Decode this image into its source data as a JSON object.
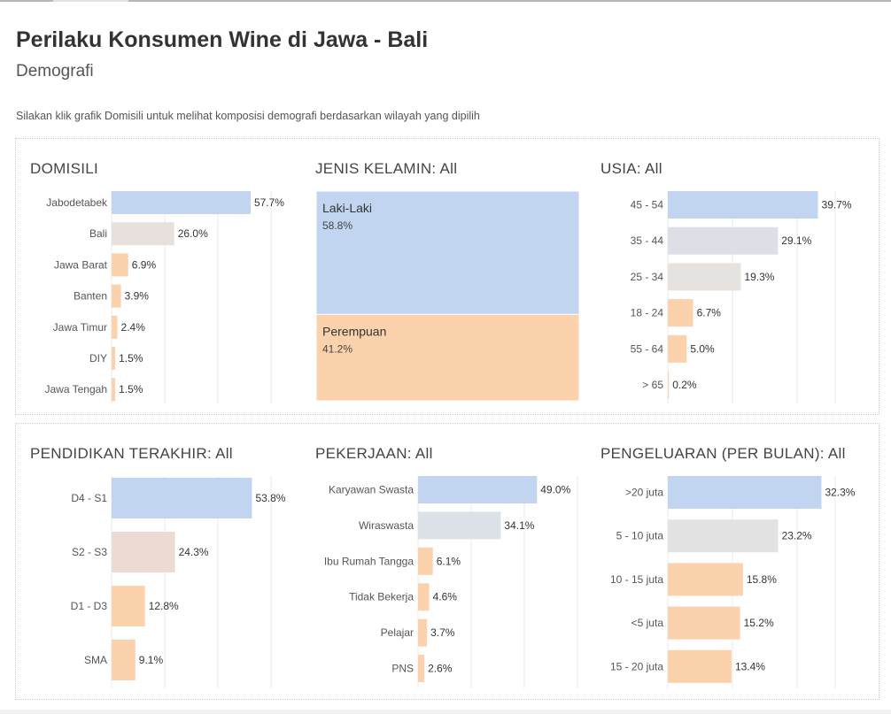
{
  "header": {
    "title": "Perilaku Konsumen Wine di Jawa - Bali",
    "subtitle": "Demografi",
    "instruction": "Silakan klik grafik Domisili untuk melihat komposisi demografi berdasarkan wilayah yang dipilih"
  },
  "colors": {
    "blue": "#c2d5f0",
    "gray": "#dcdfe6",
    "warm_gray": "#e5e0dd",
    "beige": "#ecdbd2",
    "peach": "#fcd2ad",
    "grid": "#ebebeb"
  },
  "chart_data": [
    {
      "id": "domisili",
      "type": "bar",
      "title": "DOMISILI",
      "categories": [
        "Jabodetabek",
        "Bali",
        "Jawa Barat",
        "Banten",
        "Jawa Timur",
        "DIY",
        "Jawa Tengah"
      ],
      "values": [
        57.7,
        26.0,
        6.9,
        3.9,
        2.4,
        1.5,
        1.5
      ],
      "labels": [
        "57.7%",
        "26.0%",
        "6.9%",
        "3.9%",
        "2.4%",
        "1.5%",
        "1.5%"
      ],
      "colors": [
        "#c2d5f0",
        "#e7e0dc",
        "#fcd2ad",
        "#fcd2ad",
        "#fcd2ad",
        "#fcd2ad",
        "#fcd2ad"
      ],
      "xlim": [
        0,
        60
      ]
    },
    {
      "id": "jenis_kelamin",
      "type": "treemap",
      "title": "JENIS KELAMIN: All",
      "categories": [
        "Laki-Laki",
        "Perempuan"
      ],
      "values": [
        58.8,
        41.2
      ],
      "labels": [
        "58.8%",
        "41.2%"
      ],
      "colors": [
        "#c2d5f0",
        "#fcd2ad"
      ]
    },
    {
      "id": "usia",
      "type": "bar",
      "title": "USIA: All",
      "categories": [
        "45 - 54",
        "35 - 44",
        "25 - 34",
        "18 - 24",
        "55 - 64",
        "> 65"
      ],
      "values": [
        39.7,
        29.1,
        19.3,
        6.7,
        5.0,
        0.2
      ],
      "labels": [
        "39.7%",
        "29.1%",
        "19.3%",
        "6.7%",
        "5.0%",
        "0.2%"
      ],
      "colors": [
        "#c2d5f0",
        "#dcdfe6",
        "#e5e2df",
        "#fcd2ad",
        "#fcd2ad",
        "#fcd2ad"
      ],
      "xlim": [
        0,
        40
      ]
    },
    {
      "id": "pendidikan",
      "type": "bar",
      "title": "PENDIDIKAN TERAKHIR: All",
      "categories": [
        "D4 - S1",
        "S2 - S3",
        "D1 - D3",
        "SMA"
      ],
      "values": [
        53.8,
        24.3,
        12.8,
        9.1
      ],
      "labels": [
        "53.8%",
        "24.3%",
        "12.8%",
        "9.1%"
      ],
      "colors": [
        "#c2d5f0",
        "#ecdbd2",
        "#fcd2ad",
        "#fcd2ad"
      ],
      "xlim": [
        0,
        55
      ]
    },
    {
      "id": "pekerjaan",
      "type": "bar",
      "title": "PEKERJAAN: All",
      "categories": [
        "Karyawan Swasta",
        "Wiraswasta",
        "Ibu Rumah Tangga",
        "Tidak Bekerja",
        "Pelajar",
        "PNS"
      ],
      "values": [
        49.0,
        34.1,
        6.1,
        4.6,
        3.7,
        2.6
      ],
      "labels": [
        "49.0%",
        "34.1%",
        "6.1%",
        "4.6%",
        "3.7%",
        "2.6%"
      ],
      "colors": [
        "#c2d5f0",
        "#dde1e8",
        "#fcd2ad",
        "#fcd2ad",
        "#fcd2ad",
        "#fcd2ad"
      ],
      "xlim": [
        0,
        50
      ]
    },
    {
      "id": "pengeluaran",
      "type": "bar",
      "title": "PENGELUARAN (PER BULAN): All",
      "categories": [
        ">20 juta",
        "5 - 10 juta",
        "10 - 15 juta",
        "<5 juta",
        "15 - 20 juta"
      ],
      "values": [
        32.3,
        23.2,
        15.8,
        15.2,
        13.4
      ],
      "labels": [
        "32.3%",
        "23.2%",
        "15.8%",
        "15.2%",
        "13.4%"
      ],
      "colors": [
        "#c2d5f0",
        "#e2e2e2",
        "#fcd2ad",
        "#fbd1ad",
        "#fcd2ad"
      ],
      "xlim": [
        0,
        33
      ]
    }
  ]
}
